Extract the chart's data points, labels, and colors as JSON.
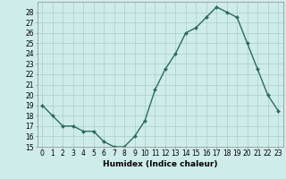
{
  "x": [
    0,
    1,
    2,
    3,
    4,
    5,
    6,
    7,
    8,
    9,
    10,
    11,
    12,
    13,
    14,
    15,
    16,
    17,
    18,
    19,
    20,
    21,
    22,
    23
  ],
  "y": [
    19,
    18,
    17,
    17,
    16.5,
    16.5,
    15.5,
    15,
    15,
    16,
    17.5,
    20.5,
    22.5,
    24,
    26,
    26.5,
    27.5,
    28.5,
    28,
    27.5,
    25,
    22.5,
    20,
    18.5
  ],
  "line_color": "#2e6b5e",
  "marker_color": "#2e6b5e",
  "bg_color": "#ceecea",
  "grid_color": "#aed4d1",
  "xlabel": "Humidex (Indice chaleur)",
  "ylabel": "",
  "xlim": [
    -0.5,
    23.5
  ],
  "ylim": [
    15,
    29
  ],
  "yticks": [
    15,
    16,
    17,
    18,
    19,
    20,
    21,
    22,
    23,
    24,
    25,
    26,
    27,
    28
  ],
  "xticks": [
    0,
    1,
    2,
    3,
    4,
    5,
    6,
    7,
    8,
    9,
    10,
    11,
    12,
    13,
    14,
    15,
    16,
    17,
    18,
    19,
    20,
    21,
    22,
    23
  ],
  "tick_label_fontsize": 5.5,
  "xlabel_fontsize": 6.5,
  "line_width": 1.0,
  "marker_size": 2.0
}
